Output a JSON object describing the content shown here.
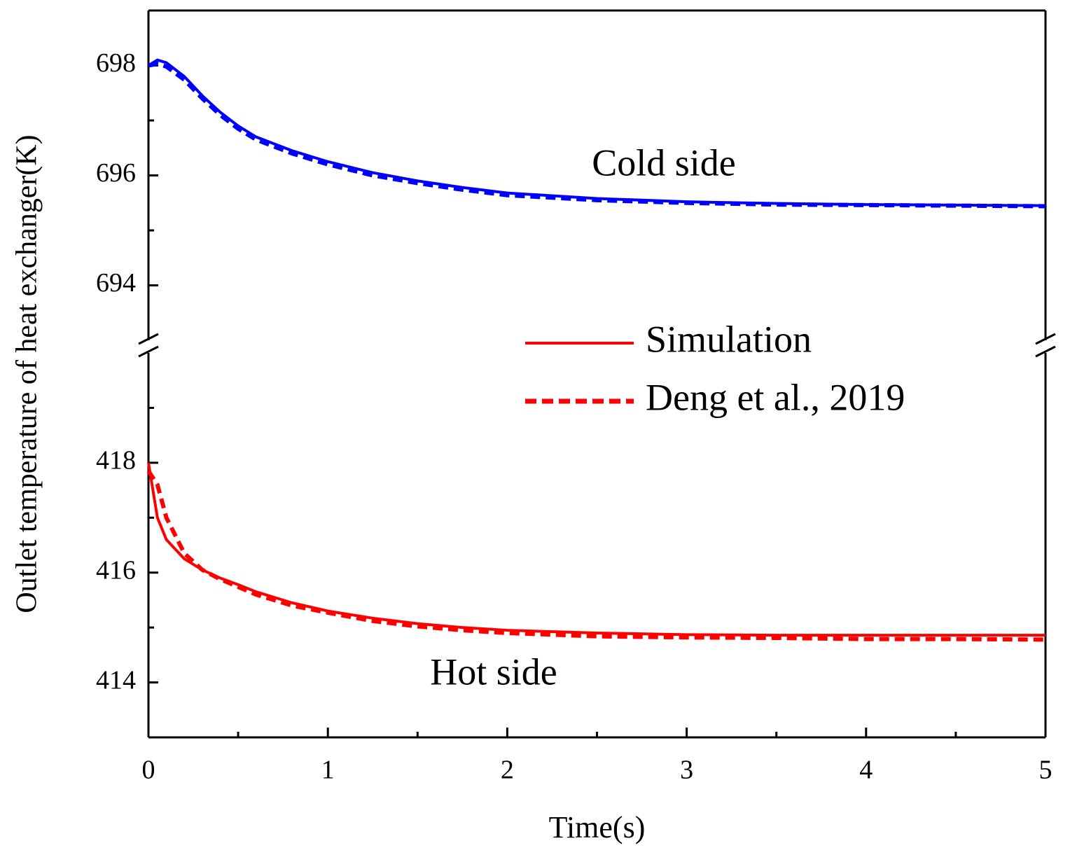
{
  "chart_data": [
    {
      "type": "line",
      "ylabel": "Outlet temperature of heat exchanger(K)",
      "x": [
        0,
        0.05,
        0.1,
        0.2,
        0.3,
        0.4,
        0.5,
        0.6,
        0.8,
        1,
        1.25,
        1.5,
        1.75,
        2,
        2.5,
        3,
        3.5,
        4,
        4.5,
        5
      ],
      "xlim": [
        0,
        5
      ],
      "ylim": [
        693,
        699
      ],
      "yticks": [
        694,
        696,
        698
      ],
      "series": [
        {
          "color": "#0000ff",
          "dashed": false,
          "values": [
            698.0,
            698.1,
            698.05,
            697.8,
            697.45,
            697.15,
            696.9,
            696.7,
            696.45,
            696.25,
            696.05,
            695.9,
            695.78,
            695.68,
            695.58,
            695.52,
            695.49,
            695.47,
            695.46,
            695.45
          ]
        },
        {
          "color": "#0000ff",
          "dashed": true,
          "values": [
            698.0,
            698.03,
            697.98,
            697.74,
            697.4,
            697.1,
            696.85,
            696.65,
            696.4,
            696.2,
            696.0,
            695.86,
            695.74,
            695.64,
            695.55,
            695.5,
            695.47,
            695.46,
            695.45,
            695.44
          ]
        }
      ],
      "annotation": {
        "text": "Cold side",
        "color": "#0000ff"
      }
    },
    {
      "type": "line",
      "xlabel": "Time(s)",
      "x": [
        0,
        0.05,
        0.1,
        0.2,
        0.3,
        0.4,
        0.5,
        0.6,
        0.8,
        1,
        1.25,
        1.5,
        1.75,
        2,
        2.5,
        3,
        3.5,
        4,
        4.5,
        5
      ],
      "xlim": [
        0,
        5
      ],
      "xticks": [
        0,
        1,
        2,
        3,
        4,
        5
      ],
      "ylim": [
        413,
        420
      ],
      "yticks": [
        414,
        416,
        418
      ],
      "series": [
        {
          "name": "Simulation",
          "color": "#ff0000",
          "dashed": false,
          "values": [
            418.0,
            417.0,
            416.6,
            416.25,
            416.05,
            415.9,
            415.78,
            415.65,
            415.45,
            415.3,
            415.17,
            415.07,
            415.0,
            414.95,
            414.9,
            414.87,
            414.86,
            414.86,
            414.86,
            414.86
          ]
        },
        {
          "name": "Deng et al., 2019",
          "color": "#ff0000",
          "dashed": true,
          "values": [
            417.85,
            417.6,
            417.0,
            416.35,
            416.05,
            415.88,
            415.74,
            415.6,
            415.4,
            415.27,
            415.12,
            415.02,
            414.95,
            414.9,
            414.84,
            414.82,
            414.81,
            414.79,
            414.79,
            414.78
          ]
        }
      ],
      "annotation": {
        "text": "Hot side",
        "color": "#ff0000"
      }
    }
  ]
}
